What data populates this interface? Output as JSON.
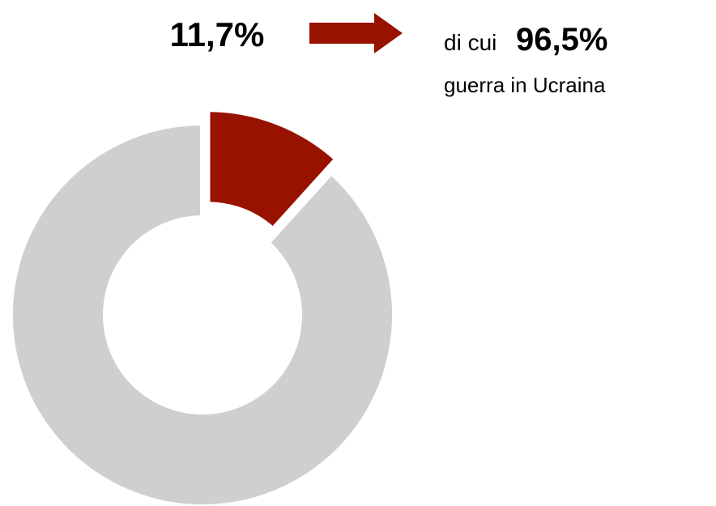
{
  "chart_data": {
    "type": "donut",
    "values": [
      11.7,
      88.3
    ],
    "value_labels": [
      "11,7%",
      null
    ],
    "colors": [
      "#981200",
      "#d0cecf"
    ],
    "exploded": [
      true,
      false
    ],
    "annotation": [
      "di cui",
      "96,5%",
      "guerra in Ucraina"
    ]
  }
}
